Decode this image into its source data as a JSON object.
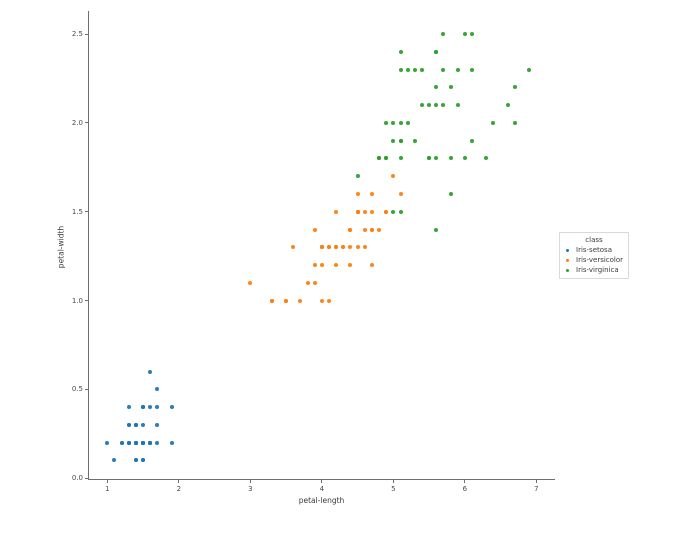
{
  "figure": {
    "background": "#ffffff"
  },
  "chart_data": {
    "type": "scatter",
    "title": "",
    "xlabel": "petal-length",
    "ylabel": "petal-width",
    "xlim": [
      0.73,
      7.26
    ],
    "ylim": [
      -0.01,
      2.63
    ],
    "grid": false,
    "xticks": {
      "values": [
        1,
        2,
        3,
        4,
        5,
        6,
        7
      ],
      "labels": [
        "1",
        "2",
        "3",
        "4",
        "5",
        "6",
        "7"
      ]
    },
    "yticks": {
      "values": [
        0.0,
        0.5,
        1.0,
        1.5,
        2.0,
        2.5
      ],
      "labels": [
        "0.0",
        "0.5",
        "1.0",
        "1.5",
        "2.0",
        "2.5"
      ]
    },
    "legend": {
      "title": "class",
      "position": "outside-right"
    },
    "series": [
      {
        "name": "Iris-setosa",
        "color": "#1f77b4",
        "points": [
          [
            1.4,
            0.2
          ],
          [
            1.4,
            0.2
          ],
          [
            1.3,
            0.2
          ],
          [
            1.5,
            0.2
          ],
          [
            1.4,
            0.2
          ],
          [
            1.7,
            0.4
          ],
          [
            1.4,
            0.3
          ],
          [
            1.5,
            0.2
          ],
          [
            1.4,
            0.2
          ],
          [
            1.5,
            0.1
          ],
          [
            1.5,
            0.2
          ],
          [
            1.6,
            0.2
          ],
          [
            1.4,
            0.1
          ],
          [
            1.1,
            0.1
          ],
          [
            1.2,
            0.2
          ],
          [
            1.5,
            0.4
          ],
          [
            1.3,
            0.4
          ],
          [
            1.4,
            0.3
          ],
          [
            1.7,
            0.3
          ],
          [
            1.5,
            0.3
          ],
          [
            1.7,
            0.2
          ],
          [
            1.5,
            0.4
          ],
          [
            1.0,
            0.2
          ],
          [
            1.7,
            0.5
          ],
          [
            1.9,
            0.2
          ],
          [
            1.6,
            0.2
          ],
          [
            1.6,
            0.4
          ],
          [
            1.5,
            0.2
          ],
          [
            1.4,
            0.2
          ],
          [
            1.6,
            0.2
          ],
          [
            1.6,
            0.2
          ],
          [
            1.5,
            0.4
          ],
          [
            1.5,
            0.1
          ],
          [
            1.4,
            0.2
          ],
          [
            1.5,
            0.2
          ],
          [
            1.2,
            0.2
          ],
          [
            1.3,
            0.2
          ],
          [
            1.4,
            0.1
          ],
          [
            1.3,
            0.2
          ],
          [
            1.5,
            0.2
          ],
          [
            1.3,
            0.3
          ],
          [
            1.3,
            0.3
          ],
          [
            1.3,
            0.2
          ],
          [
            1.6,
            0.6
          ],
          [
            1.9,
            0.4
          ],
          [
            1.4,
            0.3
          ],
          [
            1.6,
            0.2
          ],
          [
            1.4,
            0.2
          ],
          [
            1.5,
            0.2
          ],
          [
            1.4,
            0.2
          ]
        ]
      },
      {
        "name": "Iris-versicolor",
        "color": "#ff7f0e",
        "points": [
          [
            4.7,
            1.4
          ],
          [
            4.5,
            1.5
          ],
          [
            4.9,
            1.5
          ],
          [
            4.0,
            1.3
          ],
          [
            4.6,
            1.5
          ],
          [
            4.5,
            1.3
          ],
          [
            4.7,
            1.6
          ],
          [
            3.3,
            1.0
          ],
          [
            4.6,
            1.3
          ],
          [
            3.9,
            1.4
          ],
          [
            3.5,
            1.0
          ],
          [
            4.2,
            1.5
          ],
          [
            4.0,
            1.0
          ],
          [
            4.7,
            1.4
          ],
          [
            3.6,
            1.3
          ],
          [
            4.4,
            1.4
          ],
          [
            4.5,
            1.5
          ],
          [
            4.1,
            1.0
          ],
          [
            4.5,
            1.5
          ],
          [
            3.9,
            1.1
          ],
          [
            4.8,
            1.8
          ],
          [
            4.0,
            1.3
          ],
          [
            4.9,
            1.5
          ],
          [
            4.7,
            1.2
          ],
          [
            4.3,
            1.3
          ],
          [
            4.4,
            1.4
          ],
          [
            4.8,
            1.4
          ],
          [
            5.0,
            1.7
          ],
          [
            4.5,
            1.5
          ],
          [
            3.5,
            1.0
          ],
          [
            3.8,
            1.1
          ],
          [
            3.7,
            1.0
          ],
          [
            3.9,
            1.2
          ],
          [
            5.1,
            1.6
          ],
          [
            4.5,
            1.5
          ],
          [
            4.5,
            1.6
          ],
          [
            4.7,
            1.5
          ],
          [
            4.4,
            1.3
          ],
          [
            4.1,
            1.3
          ],
          [
            4.0,
            1.3
          ],
          [
            4.4,
            1.2
          ],
          [
            4.6,
            1.4
          ],
          [
            4.0,
            1.2
          ],
          [
            3.3,
            1.0
          ],
          [
            4.2,
            1.3
          ],
          [
            4.2,
            1.2
          ],
          [
            4.2,
            1.3
          ],
          [
            4.3,
            1.3
          ],
          [
            3.0,
            1.1
          ],
          [
            4.1,
            1.3
          ]
        ]
      },
      {
        "name": "Iris-virginica",
        "color": "#2ca02c",
        "points": [
          [
            6.0,
            2.5
          ],
          [
            5.1,
            1.9
          ],
          [
            5.9,
            2.1
          ],
          [
            5.6,
            1.8
          ],
          [
            5.8,
            2.2
          ],
          [
            6.6,
            2.1
          ],
          [
            4.5,
            1.7
          ],
          [
            6.3,
            1.8
          ],
          [
            5.8,
            1.8
          ],
          [
            6.1,
            2.5
          ],
          [
            5.1,
            2.0
          ],
          [
            5.3,
            1.9
          ],
          [
            5.5,
            2.1
          ],
          [
            5.0,
            2.0
          ],
          [
            5.1,
            2.4
          ],
          [
            5.3,
            2.3
          ],
          [
            5.5,
            1.8
          ],
          [
            6.7,
            2.2
          ],
          [
            6.9,
            2.3
          ],
          [
            5.0,
            1.5
          ],
          [
            5.7,
            2.3
          ],
          [
            4.9,
            2.0
          ],
          [
            6.7,
            2.0
          ],
          [
            4.9,
            1.8
          ],
          [
            5.7,
            2.1
          ],
          [
            6.0,
            1.8
          ],
          [
            4.8,
            1.8
          ],
          [
            4.9,
            1.8
          ],
          [
            5.6,
            2.1
          ],
          [
            5.8,
            1.6
          ],
          [
            6.1,
            1.9
          ],
          [
            6.4,
            2.0
          ],
          [
            5.6,
            2.2
          ],
          [
            5.1,
            1.5
          ],
          [
            5.6,
            1.4
          ],
          [
            6.1,
            2.3
          ],
          [
            5.6,
            2.4
          ],
          [
            5.5,
            1.8
          ],
          [
            4.8,
            1.8
          ],
          [
            5.4,
            2.1
          ],
          [
            5.6,
            2.4
          ],
          [
            5.1,
            2.3
          ],
          [
            5.1,
            1.9
          ],
          [
            5.9,
            2.3
          ],
          [
            5.7,
            2.5
          ],
          [
            5.2,
            2.3
          ],
          [
            5.0,
            1.9
          ],
          [
            5.2,
            2.0
          ],
          [
            5.4,
            2.3
          ],
          [
            5.1,
            1.8
          ]
        ]
      }
    ]
  }
}
